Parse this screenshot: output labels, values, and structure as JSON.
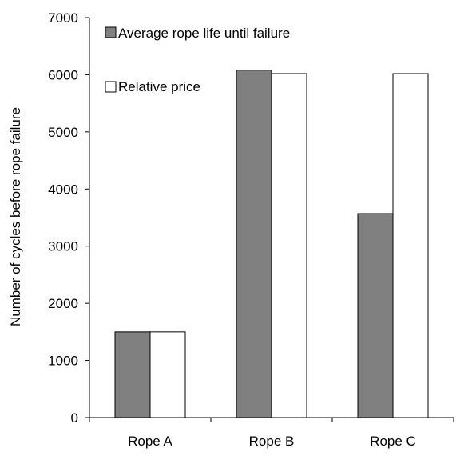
{
  "chart_data": {
    "type": "bar",
    "categories": [
      "Rope A",
      "Rope B",
      "Rope C"
    ],
    "series": [
      {
        "name": "Average rope life until failure",
        "values": [
          1500,
          6080,
          3570
        ],
        "color": "#808080"
      },
      {
        "name": "Relative price",
        "values": [
          1500,
          6020,
          6020
        ],
        "color": "#ffffff"
      }
    ],
    "ylabel": "Number of cycles before rope failure",
    "xlabel": "",
    "title": "",
    "ylim": [
      0,
      7000
    ],
    "yticks": [
      "0",
      "1000",
      "2000",
      "3000",
      "4000",
      "5000",
      "6000",
      "7000"
    ],
    "grid": false,
    "legend_position": "top-left"
  }
}
